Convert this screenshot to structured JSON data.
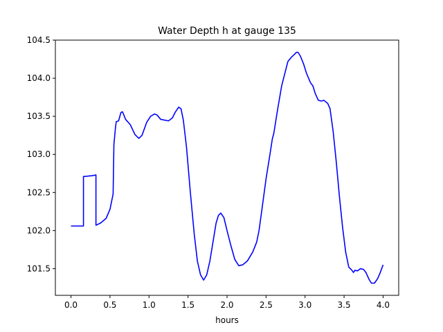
{
  "chart_data": {
    "type": "line",
    "title": "Water Depth h at gauge 135",
    "xlabel": "hours",
    "ylabel": "",
    "xlim": [
      -0.2,
      4.2
    ],
    "ylim": [
      101.15,
      104.5
    ],
    "xticks": [
      0.0,
      0.5,
      1.0,
      1.5,
      2.0,
      2.5,
      3.0,
      3.5,
      4.0
    ],
    "xtick_labels": [
      "0.0",
      "0.5",
      "1.0",
      "1.5",
      "2.0",
      "2.5",
      "3.0",
      "3.5",
      "4.0"
    ],
    "yticks": [
      101.5,
      102.0,
      102.5,
      103.0,
      103.5,
      104.0,
      104.5
    ],
    "ytick_labels": [
      "101.5",
      "102.0",
      "102.5",
      "103.0",
      "103.5",
      "104.0",
      "104.5"
    ],
    "grid": false,
    "series": [
      {
        "color": "#0000ff",
        "points": [
          [
            0.0,
            102.06
          ],
          [
            0.16,
            102.06
          ],
          [
            0.16,
            102.71
          ],
          [
            0.27,
            102.72
          ],
          [
            0.32,
            102.73
          ],
          [
            0.32,
            102.07
          ],
          [
            0.38,
            102.1
          ],
          [
            0.45,
            102.16
          ],
          [
            0.5,
            102.28
          ],
          [
            0.54,
            102.48
          ],
          [
            0.55,
            103.13
          ],
          [
            0.57,
            103.35
          ],
          [
            0.58,
            103.43
          ],
          [
            0.61,
            103.44
          ],
          [
            0.64,
            103.55
          ],
          [
            0.66,
            103.56
          ],
          [
            0.7,
            103.46
          ],
          [
            0.76,
            103.39
          ],
          [
            0.82,
            103.26
          ],
          [
            0.87,
            103.21
          ],
          [
            0.91,
            103.25
          ],
          [
            0.97,
            103.42
          ],
          [
            1.02,
            103.5
          ],
          [
            1.07,
            103.53
          ],
          [
            1.1,
            103.52
          ],
          [
            1.15,
            103.46
          ],
          [
            1.25,
            103.44
          ],
          [
            1.3,
            103.48
          ],
          [
            1.34,
            103.56
          ],
          [
            1.38,
            103.62
          ],
          [
            1.41,
            103.6
          ],
          [
            1.44,
            103.45
          ],
          [
            1.48,
            103.1
          ],
          [
            1.53,
            102.5
          ],
          [
            1.58,
            101.95
          ],
          [
            1.62,
            101.6
          ],
          [
            1.66,
            101.42
          ],
          [
            1.7,
            101.35
          ],
          [
            1.74,
            101.42
          ],
          [
            1.78,
            101.6
          ],
          [
            1.82,
            101.85
          ],
          [
            1.86,
            102.1
          ],
          [
            1.89,
            102.2
          ],
          [
            1.92,
            102.23
          ],
          [
            1.96,
            102.17
          ],
          [
            2.0,
            102.0
          ],
          [
            2.05,
            101.8
          ],
          [
            2.1,
            101.62
          ],
          [
            2.15,
            101.54
          ],
          [
            2.2,
            101.55
          ],
          [
            2.26,
            101.6
          ],
          [
            2.33,
            101.72
          ],
          [
            2.38,
            101.85
          ],
          [
            2.41,
            102.0
          ],
          [
            2.45,
            102.3
          ],
          [
            2.5,
            102.68
          ],
          [
            2.55,
            103.0
          ],
          [
            2.58,
            103.2
          ],
          [
            2.6,
            103.28
          ],
          [
            2.65,
            103.6
          ],
          [
            2.7,
            103.9
          ],
          [
            2.75,
            104.1
          ],
          [
            2.78,
            104.22
          ],
          [
            2.82,
            104.27
          ],
          [
            2.86,
            104.31
          ],
          [
            2.89,
            104.34
          ],
          [
            2.91,
            104.34
          ],
          [
            2.94,
            104.29
          ],
          [
            2.98,
            104.19
          ],
          [
            3.02,
            104.06
          ],
          [
            3.07,
            103.94
          ],
          [
            3.1,
            103.9
          ],
          [
            3.13,
            103.8
          ],
          [
            3.17,
            103.71
          ],
          [
            3.21,
            103.7
          ],
          [
            3.24,
            103.71
          ],
          [
            3.29,
            103.67
          ],
          [
            3.32,
            103.6
          ],
          [
            3.36,
            103.3
          ],
          [
            3.4,
            102.9
          ],
          [
            3.44,
            102.45
          ],
          [
            3.48,
            102.05
          ],
          [
            3.52,
            101.72
          ],
          [
            3.56,
            101.52
          ],
          [
            3.6,
            101.48
          ],
          [
            3.62,
            101.45
          ],
          [
            3.64,
            101.48
          ],
          [
            3.67,
            101.47
          ],
          [
            3.71,
            101.5
          ],
          [
            3.75,
            101.49
          ],
          [
            3.78,
            101.45
          ],
          [
            3.82,
            101.36
          ],
          [
            3.85,
            101.31
          ],
          [
            3.89,
            101.31
          ],
          [
            3.93,
            101.37
          ],
          [
            3.96,
            101.44
          ],
          [
            4.0,
            101.55
          ]
        ]
      }
    ]
  }
}
